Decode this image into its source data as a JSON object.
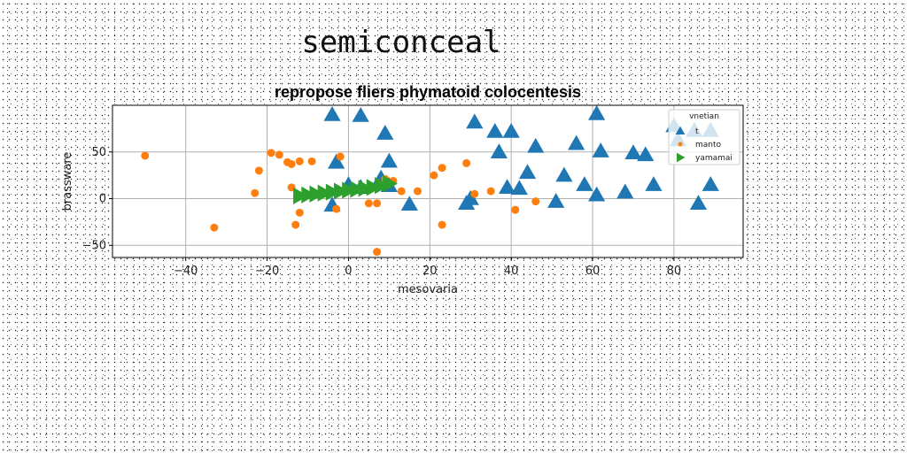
{
  "page": {
    "heading": "semiconceal"
  },
  "chart_data": {
    "type": "scatter",
    "title": "repropose fliers phymatoid colocentesis",
    "xlabel": "mesovaria",
    "ylabel": "brassware",
    "xlim": [
      -58,
      97
    ],
    "ylim": [
      -63,
      100
    ],
    "xticks": [
      -40,
      -20,
      0,
      20,
      40,
      60,
      80
    ],
    "yticks": [
      -50,
      0,
      50
    ],
    "grid": true,
    "legend": {
      "title": "vnetian",
      "placement": "top-right"
    },
    "colors": {
      "t": "#1f77b4",
      "manto": "#ff7f0e",
      "yamamai": "#2ca02c"
    },
    "series": [
      {
        "name": "t",
        "marker": "triangle",
        "points": [
          [
            -4,
            90
          ],
          [
            3,
            89
          ],
          [
            61,
            91
          ],
          [
            9,
            70
          ],
          [
            31,
            82
          ],
          [
            36,
            72
          ],
          [
            40,
            72
          ],
          [
            46,
            56
          ],
          [
            56,
            59
          ],
          [
            62,
            51
          ],
          [
            70,
            49
          ],
          [
            73,
            47
          ],
          [
            80,
            78
          ],
          [
            81,
            63
          ],
          [
            85,
            73
          ],
          [
            89,
            73
          ],
          [
            -3,
            39
          ],
          [
            10,
            40
          ],
          [
            37,
            50
          ],
          [
            44,
            28
          ],
          [
            53,
            25
          ],
          [
            58,
            15
          ],
          [
            75,
            15
          ],
          [
            89,
            15
          ],
          [
            -4,
            -7
          ],
          [
            15,
            -6
          ],
          [
            29,
            -5
          ],
          [
            30,
            0
          ],
          [
            39,
            12
          ],
          [
            42,
            11
          ],
          [
            61,
            4
          ],
          [
            68,
            7
          ],
          [
            51,
            -3
          ],
          [
            86,
            -5
          ],
          [
            0,
            15
          ],
          [
            10,
            14
          ],
          [
            3,
            12
          ],
          [
            8,
            22
          ]
        ]
      },
      {
        "name": "manto",
        "marker": "circle",
        "points": [
          [
            -50,
            46
          ],
          [
            -33,
            -31
          ],
          [
            -22,
            30
          ],
          [
            -23,
            6
          ],
          [
            -19,
            49
          ],
          [
            -17,
            47
          ],
          [
            -15,
            39
          ],
          [
            -14,
            37
          ],
          [
            -12,
            40
          ],
          [
            -9,
            40
          ],
          [
            -2,
            45
          ],
          [
            -14,
            12
          ],
          [
            -13,
            -28
          ],
          [
            -12,
            -15
          ],
          [
            -3,
            -11
          ],
          [
            5,
            -5
          ],
          [
            7,
            -5
          ],
          [
            7,
            -57
          ],
          [
            9,
            21
          ],
          [
            11,
            19
          ],
          [
            13,
            8
          ],
          [
            17,
            8
          ],
          [
            21,
            25
          ],
          [
            23,
            33
          ],
          [
            23,
            -28
          ],
          [
            29,
            38
          ],
          [
            31,
            5
          ],
          [
            35,
            8
          ],
          [
            41,
            -12
          ],
          [
            46,
            -3
          ]
        ]
      },
      {
        "name": "yamamai",
        "marker": "triangle-right",
        "points": [
          [
            -12,
            3
          ],
          [
            -10,
            4
          ],
          [
            -8,
            5
          ],
          [
            -6,
            6
          ],
          [
            -4,
            7
          ],
          [
            -2,
            8
          ],
          [
            0,
            9
          ],
          [
            2,
            10
          ],
          [
            4,
            11
          ],
          [
            6,
            12
          ],
          [
            8,
            14
          ],
          [
            10,
            16
          ]
        ]
      }
    ]
  }
}
